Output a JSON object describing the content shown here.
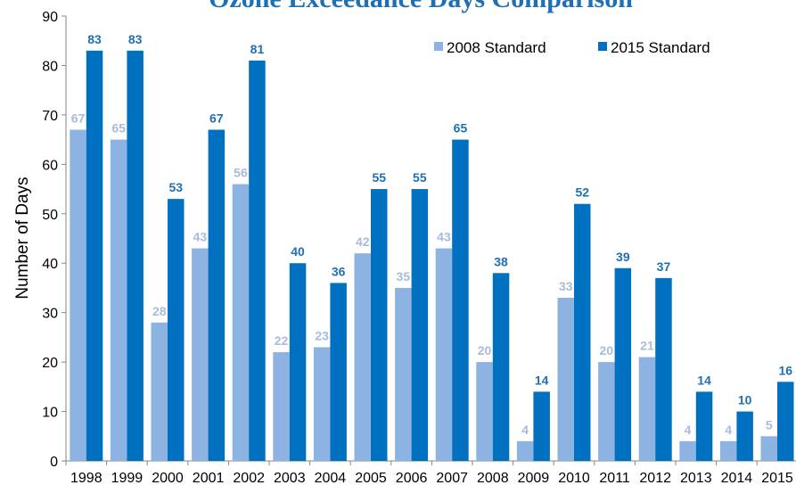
{
  "chart_data": {
    "type": "bar",
    "title": "Ozone Exceedance Days Comparison",
    "xlabel": "",
    "ylabel": "Number of Days",
    "ylim": [
      0,
      90
    ],
    "yticks": [
      0,
      10,
      20,
      30,
      40,
      50,
      60,
      70,
      80,
      90
    ],
    "grid": false,
    "legend": "top-right",
    "categories": [
      "1998",
      "1999",
      "2000",
      "2001",
      "2002",
      "2003",
      "2004",
      "2005",
      "2006",
      "2007",
      "2008",
      "2009",
      "2010",
      "2011",
      "2012",
      "2013",
      "2014",
      "2015"
    ],
    "series": [
      {
        "name": "2008 Standard",
        "color": "#8db3e2",
        "label_color": "#a6bcd9",
        "values": [
          67,
          65,
          28,
          43,
          56,
          22,
          23,
          42,
          35,
          43,
          20,
          4,
          33,
          20,
          21,
          4,
          4,
          5
        ]
      },
      {
        "name": "2015 Standard",
        "color": "#0070c0",
        "label_color": "#1f6fb5",
        "values": [
          83,
          83,
          53,
          67,
          81,
          40,
          36,
          55,
          55,
          65,
          38,
          14,
          52,
          39,
          37,
          14,
          10,
          16
        ]
      }
    ]
  }
}
